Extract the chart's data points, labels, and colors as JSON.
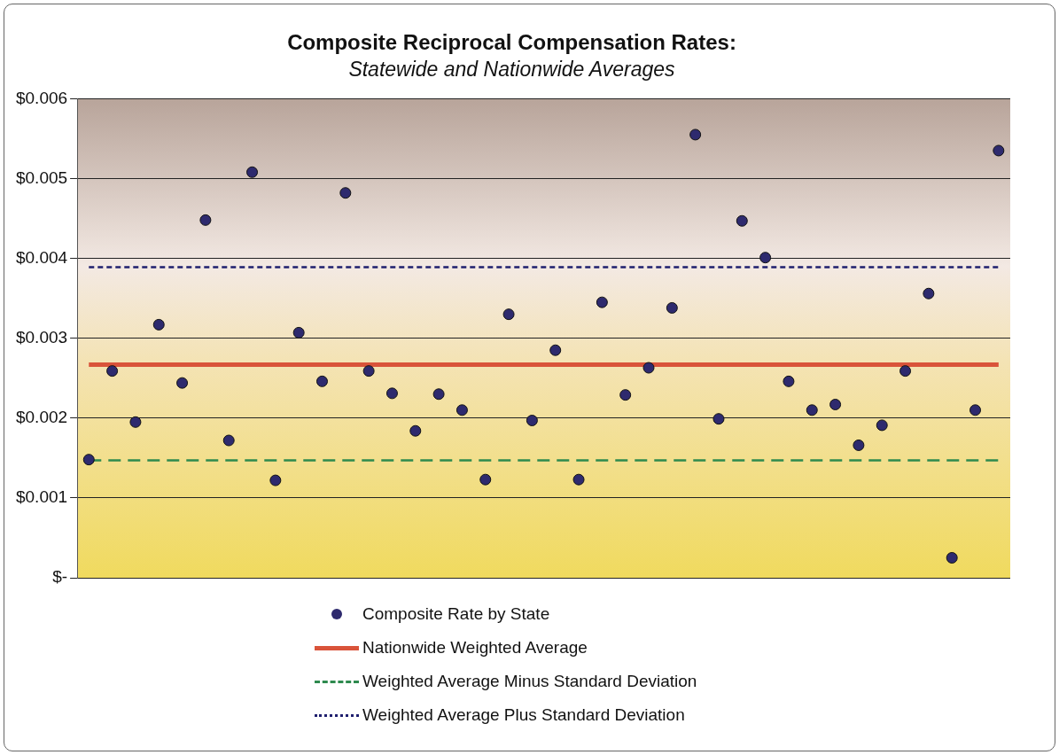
{
  "chart_data": {
    "type": "scatter",
    "title": "Composite Reciprocal Compensation Rates:",
    "subtitle": "Statewide and Nationwide Averages",
    "categories": [
      null,
      null,
      null,
      null,
      null,
      null,
      null,
      null,
      null,
      null,
      null,
      null,
      null,
      null,
      null,
      null,
      null,
      null,
      null,
      null,
      null,
      null,
      null,
      null,
      null,
      null,
      null,
      null,
      null,
      null,
      null,
      null,
      null,
      null,
      null,
      null,
      null,
      null,
      null,
      null
    ],
    "ylim": [
      0,
      0.006
    ],
    "yticks": [
      {
        "value": 0,
        "label": "$-"
      },
      {
        "value": 0.001,
        "label": "$0.001"
      },
      {
        "value": 0.002,
        "label": "$0.002"
      },
      {
        "value": 0.003,
        "label": "$0.003"
      },
      {
        "value": 0.004,
        "label": "$0.004"
      },
      {
        "value": 0.005,
        "label": "$0.005"
      },
      {
        "value": 0.006,
        "label": "$0.006"
      }
    ],
    "grid": "y",
    "tick_labels": "y",
    "legend": "bottom",
    "series": [
      {
        "name": "Composite Rate by State",
        "marker": "circle",
        "color": "#2e2a6e",
        "values": [
          0.00148,
          0.00259,
          0.00195,
          0.00317,
          0.00244,
          0.00448,
          0.00172,
          0.00508,
          0.00122,
          0.00307,
          0.00246,
          0.00482,
          0.00259,
          0.00231,
          0.00184,
          0.0023,
          0.0021,
          0.00123,
          0.0033,
          0.00197,
          0.00285,
          0.00123,
          0.00345,
          0.00229,
          0.00263,
          0.00338,
          0.00555,
          0.00199,
          0.00447,
          0.00401,
          0.00246,
          0.0021,
          0.00217,
          0.00166,
          0.00191,
          0.00259,
          0.00356,
          0.00025,
          0.0021,
          0.00535
        ]
      },
      {
        "name": "Nationwide Weighted Average",
        "type": "line",
        "marker": "none",
        "line_style": "solid",
        "color": "#d9533a",
        "values": [
          0.00267,
          0.00267,
          0.00267,
          0.00267,
          0.00267,
          0.00267,
          0.00267,
          0.00267,
          0.00267,
          0.00267,
          0.00267,
          0.00267,
          0.00267,
          0.00267,
          0.00267,
          0.00267,
          0.00267,
          0.00267,
          0.00267,
          0.00267,
          0.00267,
          0.00267,
          0.00267,
          0.00267,
          0.00267,
          0.00267,
          0.00267,
          0.00267,
          0.00267,
          0.00267,
          0.00267,
          0.00267,
          0.00267,
          0.00267,
          0.00267,
          0.00267,
          0.00267,
          0.00267,
          0.00267,
          0.00267
        ]
      },
      {
        "name": "Weighted Average Minus Standard Deviation",
        "type": "line",
        "marker": "none",
        "line_style": "dashed",
        "color": "#2e8a4e",
        "values": [
          0.00147,
          0.00147,
          0.00147,
          0.00147,
          0.00147,
          0.00147,
          0.00147,
          0.00147,
          0.00147,
          0.00147,
          0.00147,
          0.00147,
          0.00147,
          0.00147,
          0.00147,
          0.00147,
          0.00147,
          0.00147,
          0.00147,
          0.00147,
          0.00147,
          0.00147,
          0.00147,
          0.00147,
          0.00147,
          0.00147,
          0.00147,
          0.00147,
          0.00147,
          0.00147,
          0.00147,
          0.00147,
          0.00147,
          0.00147,
          0.00147,
          0.00147,
          0.00147,
          0.00147,
          0.00147,
          0.00147
        ]
      },
      {
        "name": "Weighted Average Plus Standard Deviation",
        "type": "line",
        "marker": "none",
        "line_style": "dotted",
        "color": "#1f1f6e",
        "values": [
          0.00389,
          0.00389,
          0.00389,
          0.00389,
          0.00389,
          0.00389,
          0.00389,
          0.00389,
          0.00389,
          0.00389,
          0.00389,
          0.00389,
          0.00389,
          0.00389,
          0.00389,
          0.00389,
          0.00389,
          0.00389,
          0.00389,
          0.00389,
          0.00389,
          0.00389,
          0.00389,
          0.00389,
          0.00389,
          0.00389,
          0.00389,
          0.00389,
          0.00389,
          0.00389,
          0.00389,
          0.00389,
          0.00389,
          0.00389,
          0.00389,
          0.00389,
          0.00389,
          0.00389,
          0.00389,
          0.00389
        ]
      }
    ]
  }
}
